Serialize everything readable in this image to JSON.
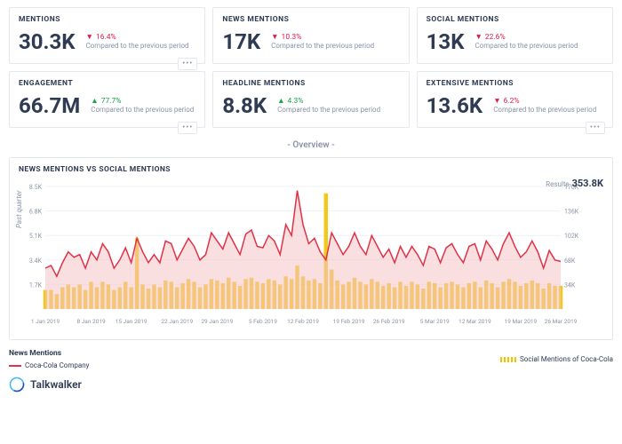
{
  "colors": {
    "text": "#2e3b52",
    "muted": "#8a93a6",
    "border": "#e4e7ed",
    "up": "#16a34a",
    "down": "#e11d48",
    "line": "#e03246",
    "area": "#f6c4c8",
    "bars": "#f2c200",
    "grid": "#eef1f5"
  },
  "kpis": [
    {
      "title": "MENTIONS",
      "value": "30.3K",
      "delta": "16.4%",
      "dir": "down",
      "note": "Compared to the previous period",
      "menu": true
    },
    {
      "title": "NEWS MENTIONS",
      "value": "17K",
      "delta": "10.3%",
      "dir": "down",
      "note": "Compared to the previous period",
      "menu": false
    },
    {
      "title": "SOCIAL MENTIONS",
      "value": "13K",
      "delta": "22.6%",
      "dir": "down",
      "note": "Compared to the previous period",
      "menu": false
    },
    {
      "title": "ENGAGEMENT",
      "value": "66.7M",
      "delta": "77.7%",
      "dir": "up",
      "note": "Compared to the previous period",
      "menu": true
    },
    {
      "title": "HEADLINE MENTIONS",
      "value": "8.8K",
      "delta": "4.3%",
      "dir": "up",
      "note": "Compared to the previous period",
      "menu": false
    },
    {
      "title": "EXTENSIVE MENTIONS",
      "value": "13.6K",
      "delta": "6.2%",
      "dir": "down",
      "note": "Compared to the previous period",
      "menu": true
    }
  ],
  "overview_label": "- Overview -",
  "chart": {
    "title": "NEWS MENTIONS VS SOCIAL MENTIONS",
    "results_label": "Results",
    "results_value": "353.8K",
    "y_left_label": "Past quarter",
    "y_left_ticks": [
      "1.7K",
      "3.4K",
      "5.1K",
      "6.8K",
      "8.5K"
    ],
    "y_right_ticks": [
      "34K",
      "68K",
      "102K",
      "136K",
      "170K"
    ],
    "x_ticks": [
      "1 Jan 2019",
      "8 Jan 2019",
      "15 Jan 2019",
      "22 Jan 2019",
      "29 Jan 2019",
      "5 Feb 2019",
      "12 Feb 2019",
      "19 Feb 2019",
      "26 Feb 2019",
      "5 Mar 2019",
      "12 Mar 2019",
      "19 Mar 2019",
      "26 Mar 2019"
    ],
    "x_range": [
      0,
      90
    ],
    "y_range": [
      0,
      9
    ],
    "line_series": [
      3.0,
      3.2,
      2.4,
      3.4,
      4.2,
      3.8,
      4.0,
      3.0,
      4.2,
      3.6,
      4.8,
      4.2,
      3.0,
      3.6,
      4.5,
      3.4,
      5.2,
      4.2,
      3.4,
      4.0,
      3.4,
      5.0,
      4.8,
      3.6,
      4.4,
      5.2,
      4.6,
      3.6,
      4.0,
      5.6,
      5.0,
      4.4,
      5.6,
      4.8,
      4.0,
      5.5,
      5.8,
      4.6,
      4.5,
      5.4,
      5.0,
      4.0,
      6.2,
      5.4,
      8.7,
      6.2,
      4.8,
      5.2,
      4.2,
      3.6,
      5.6,
      4.8,
      4.0,
      4.6,
      5.6,
      4.6,
      4.0,
      5.4,
      4.6,
      3.8,
      4.4,
      3.4,
      4.6,
      3.8,
      4.6,
      4.0,
      3.2,
      4.6,
      4.4,
      3.4,
      4.5,
      4.8,
      4.0,
      3.4,
      4.6,
      4.8,
      3.6,
      5.0,
      4.4,
      3.6,
      4.8,
      5.6,
      4.6,
      3.8,
      4.2,
      5.0,
      4.2,
      3.0,
      4.3,
      3.6,
      3.5
    ],
    "bar_series": [
      1.4,
      1.4,
      1.1,
      1.6,
      1.8,
      1.6,
      1.8,
      1.4,
      2.0,
      1.6,
      2.0,
      1.8,
      1.4,
      1.6,
      2.0,
      1.6,
      5.2,
      1.8,
      1.5,
      1.8,
      1.6,
      2.1,
      2.0,
      1.6,
      1.9,
      2.2,
      2.0,
      1.6,
      1.8,
      2.2,
      2.1,
      1.9,
      2.3,
      2.0,
      1.7,
      2.2,
      2.3,
      2.0,
      1.9,
      2.2,
      2.1,
      1.8,
      2.4,
      2.2,
      3.2,
      2.4,
      2.1,
      2.2,
      1.9,
      8.5,
      2.9,
      2.1,
      1.8,
      2.0,
      2.3,
      2.0,
      1.8,
      2.2,
      2.0,
      1.7,
      1.9,
      1.6,
      2.0,
      1.7,
      2.0,
      1.8,
      1.5,
      2.0,
      1.9,
      1.6,
      1.9,
      2.0,
      1.8,
      1.6,
      1.9,
      2.0,
      1.6,
      2.1,
      1.9,
      1.6,
      2.0,
      2.2,
      2.0,
      1.7,
      1.9,
      2.1,
      1.9,
      1.5,
      1.9,
      1.7,
      1.7
    ],
    "legend_header": "News Mentions",
    "legend_line": "Coca-Cola Company",
    "legend_bars": "Social Mentions of Coca-Cola"
  },
  "brand": "Talkwalker"
}
